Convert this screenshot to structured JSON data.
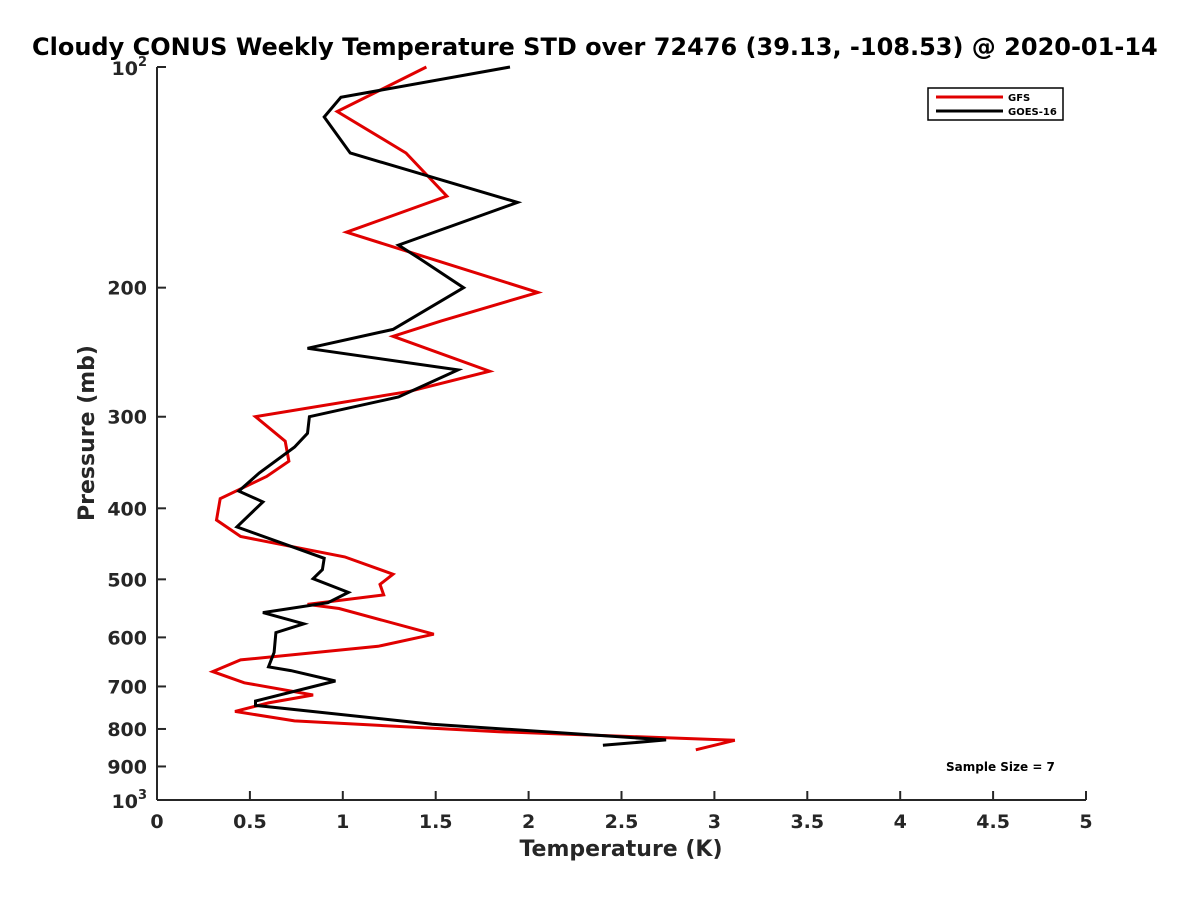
{
  "chart_data": {
    "type": "line",
    "title": "Cloudy CONUS Weekly Temperature STD over 72476 (39.13, -108.53) @ 2020-01-14",
    "xlabel": "Temperature (K)",
    "ylabel": "Pressure (mb)",
    "xlim": [
      0,
      5
    ],
    "ylim": [
      100,
      1000
    ],
    "y_scale": "log",
    "y_reversed": true,
    "grid": false,
    "legend_position": "top-right",
    "x_ticks": [
      "0",
      "0.5",
      "1",
      "1.5",
      "2",
      "2.5",
      "3",
      "3.5",
      "4",
      "4.5",
      "5"
    ],
    "y_ticks": [
      {
        "value": 100,
        "base": "10",
        "exp": "2"
      },
      {
        "value": 200,
        "label": "200"
      },
      {
        "value": 300,
        "label": "300"
      },
      {
        "value": 400,
        "label": "400"
      },
      {
        "value": 500,
        "label": "500"
      },
      {
        "value": 600,
        "label": "600"
      },
      {
        "value": 700,
        "label": "700"
      },
      {
        "value": 800,
        "label": "800"
      },
      {
        "value": 900,
        "label": "900"
      },
      {
        "value": 1000,
        "base": "10",
        "exp": "3"
      }
    ],
    "series": [
      {
        "name": "GFS",
        "color": "#e00000",
        "x": [
          1.45,
          0.97,
          1.34,
          1.56,
          1.02,
          2.05,
          1.53,
          1.27,
          1.79,
          1.36,
          0.53,
          0.69,
          0.71,
          0.59,
          0.34,
          0.32,
          0.45,
          1.01,
          1.27,
          1.2,
          1.22,
          0.81,
          0.98,
          1.49,
          1.19,
          0.45,
          0.3,
          0.47,
          0.84,
          0.6,
          0.42,
          0.74,
          1.84,
          3.11,
          2.9
        ],
        "y": [
          100,
          115,
          131,
          150,
          168,
          203,
          222,
          233,
          260,
          277,
          300,
          324,
          345,
          362,
          388,
          415,
          437,
          466,
          492,
          508,
          525,
          541,
          548,
          594,
          617,
          644,
          668,
          692,
          719,
          737,
          757,
          780,
          807,
          829,
          854
        ]
      },
      {
        "name": "GOES-16",
        "color": "#000000",
        "x": [
          1.9,
          0.99,
          0.9,
          1.04,
          1.94,
          1.3,
          1.42,
          1.65,
          1.27,
          0.81,
          1.62,
          1.3,
          0.82,
          0.81,
          0.74,
          0.55,
          0.44,
          0.57,
          0.43,
          0.9,
          0.89,
          0.84,
          1.03,
          0.92,
          0.57,
          0.79,
          0.64,
          0.63,
          0.6,
          0.72,
          0.96,
          0.53,
          0.53,
          1.48,
          2.74,
          2.4
        ],
        "y": [
          100,
          110,
          117,
          131,
          153,
          175,
          183,
          200,
          228,
          242,
          259,
          282,
          300,
          316,
          330,
          358,
          379,
          392,
          424,
          468,
          485,
          499,
          521,
          538,
          555,
          575,
          591,
          629,
          658,
          666,
          688,
          733,
          743,
          788,
          828,
          842
        ]
      }
    ],
    "annotations": [
      "Sample Size = 7"
    ]
  }
}
